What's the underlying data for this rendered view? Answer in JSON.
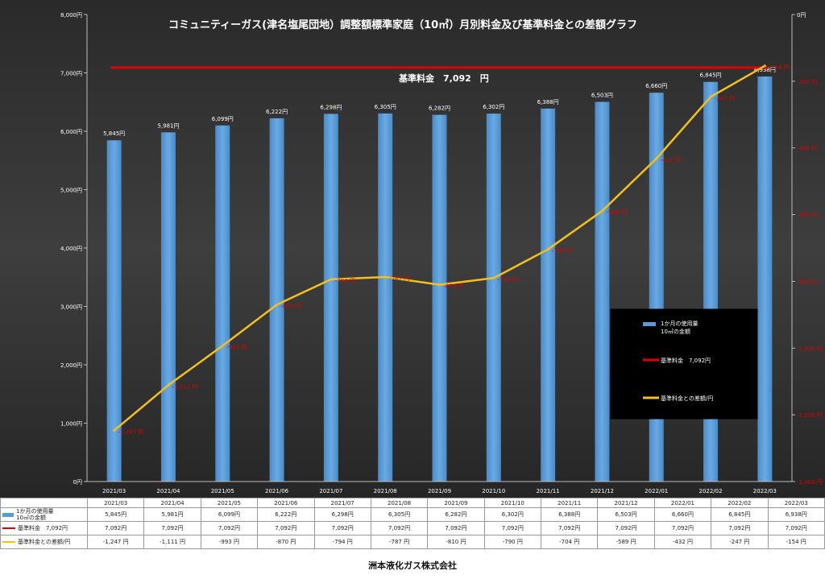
{
  "chart_data": {
    "type": "bar+line",
    "title": "コミュニティーガス(津名塩尾団地）調整額標準家庭（10㎥）月別料金及び基準料金との差額グラフ",
    "categories": [
      "2021/03",
      "2021/04",
      "2021/05",
      "2021/06",
      "2021/07",
      "2021/08",
      "2021/09",
      "2021/10",
      "2021/11",
      "2021/12",
      "2022/01",
      "2022/02",
      "2022/03"
    ],
    "series": [
      {
        "name": "1か月の使用量10㎥の金額",
        "kind": "bar",
        "axis": "left",
        "color": "#5b9bd5",
        "values": [
          5845,
          5981,
          6099,
          6222,
          6298,
          6305,
          6282,
          6302,
          6388,
          6503,
          6660,
          6845,
          6938
        ],
        "labels": [
          "5,845円",
          "5,981円",
          "6,099円",
          "6,222円",
          "6,298円",
          "6,305円",
          "6,282円",
          "6,302円",
          "6,388円",
          "6,503円",
          "6,660円",
          "6,845円",
          "6,938円"
        ]
      },
      {
        "name": "基準料金　7,092円",
        "kind": "hline",
        "axis": "left",
        "color": "#e00000",
        "values": [
          7092,
          7092,
          7092,
          7092,
          7092,
          7092,
          7092,
          7092,
          7092,
          7092,
          7092,
          7092,
          7092
        ]
      },
      {
        "name": "基準料金との差額/円",
        "kind": "line",
        "axis": "right",
        "color": "#f4c01e",
        "values": [
          -1247,
          -1111,
          -993,
          -870,
          -794,
          -787,
          -810,
          -790,
          -704,
          -589,
          -432,
          -247,
          -154
        ],
        "labels": [
          "-1,247 円",
          "-1,111 円",
          "-993 円",
          "-870 円",
          "-794 円",
          "-787 円",
          "-810 円",
          "-790 円",
          "-704 円",
          "-589 円",
          "-432 円",
          "-247 円",
          "-154 円"
        ]
      }
    ],
    "y_left": {
      "min": 0,
      "max": 8000,
      "step": 1000,
      "ticks": [
        "0円",
        "1,000円",
        "2,000円",
        "3,000円",
        "4,000円",
        "5,000円",
        "6,000円",
        "7,000円",
        "8,000円"
      ]
    },
    "y_right": {
      "min": -1400,
      "max": 0,
      "step": 200,
      "ticks": [
        "0円",
        "-200 円",
        "-400 円",
        "-600 円",
        "-800 円",
        "-1,000 円",
        "-1,200 円",
        "-1,400 円"
      ]
    },
    "annotation": "基準料金　7,092　円",
    "legend": {
      "position": "center-right",
      "items": [
        "1か月の使用量\n10㎥の金額",
        "基準料金　7,092円",
        "基準料金との差額/円"
      ]
    },
    "grid": false
  },
  "table": {
    "rows": [
      {
        "label": "1か月の使用量\n10㎥の金額",
        "swatch": "bar",
        "values": [
          "5,845円",
          "5,981円",
          "6,099円",
          "6,222円",
          "6,298円",
          "6,305円",
          "6,282円",
          "6,302円",
          "6,388円",
          "6,503円",
          "6,660円",
          "6,845円",
          "6,938円"
        ]
      },
      {
        "label": "基準料金　7,092円",
        "swatch": "red",
        "values": [
          "7,092円",
          "7,092円",
          "7,092円",
          "7,092円",
          "7,092円",
          "7,092円",
          "7,092円",
          "7,092円",
          "7,092円",
          "7,092円",
          "7,092円",
          "7,092円",
          "7,092円"
        ]
      },
      {
        "label": "基準料金との差額/円",
        "swatch": "yel",
        "values": [
          "-1,247 円",
          "-1,111 円",
          "-993 円",
          "-870 円",
          "-794 円",
          "-787 円",
          "-810 円",
          "-790 円",
          "-704 円",
          "-589 円",
          "-432 円",
          "-247 円",
          "-154 円"
        ]
      }
    ]
  },
  "footer": "洲本液化ガス株式会社",
  "colors": {
    "plot_bg": "#2f2f2f",
    "bar": "#5b9bd5",
    "base_line": "#e00000",
    "diff_line": "#f4c01e",
    "diff_label": "#e00000"
  }
}
